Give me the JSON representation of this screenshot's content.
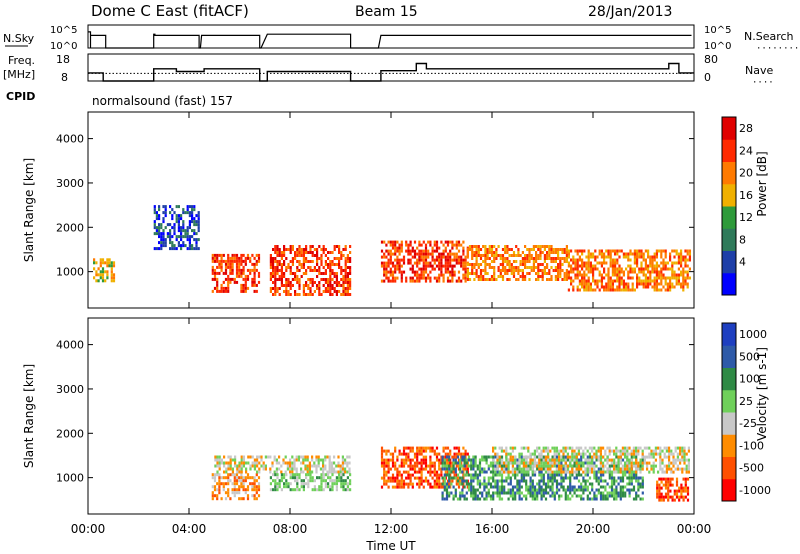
{
  "header": {
    "station": "Dome C East (fitACF)",
    "beam": "Beam 15",
    "date": "28/Jan/2013"
  },
  "strips": {
    "nsky": {
      "left_label": "N.Sky",
      "left_ticks": [
        "10^5",
        "10^0"
      ],
      "right_label": "N.Search",
      "right_ticks": [
        "10^5",
        "10^0"
      ],
      "line_style_hint": "·········"
    },
    "freq": {
      "left_label_1": "Freq.",
      "left_label_2": "[MHz]",
      "left_ticks": [
        "18",
        "8"
      ],
      "right_label": "Nave",
      "right_ticks": [
        "80",
        "0"
      ],
      "line_style_hint": "····"
    },
    "cpid": {
      "label": "CPID",
      "program": "normalsound (fast) 157"
    }
  },
  "chart_data": [
    {
      "type": "heatmap",
      "panel": "power",
      "ylabel": "Slant Range [km]",
      "yticks": [
        "1000",
        "2000",
        "3000",
        "4000"
      ],
      "ylim": [
        180,
        4600
      ],
      "xlim_hours": [
        0,
        24
      ],
      "colorbar": {
        "label": "Power [dB]",
        "ticks": [
          "28",
          "24",
          "20",
          "16",
          "12",
          "8",
          "4"
        ],
        "colors": [
          "#0000ff",
          "#1e3fa8",
          "#2f7a5a",
          "#2e9a3a",
          "#f0b000",
          "#ff7a00",
          "#ff2a00",
          "#e00000"
        ]
      },
      "echo_bands": [
        {
          "t0": 0.2,
          "t1": 1.0,
          "r0": 800,
          "r1": 1300,
          "level": 4
        },
        {
          "t0": 2.6,
          "t1": 4.4,
          "r0": 1500,
          "r1": 2500,
          "level": 1
        },
        {
          "t0": 4.9,
          "t1": 6.8,
          "r0": 550,
          "r1": 1400,
          "level": 6
        },
        {
          "t0": 7.2,
          "t1": 10.4,
          "r0": 500,
          "r1": 1600,
          "level": 6
        },
        {
          "t0": 11.6,
          "t1": 15.0,
          "r0": 800,
          "r1": 1700,
          "level": 6
        },
        {
          "t0": 15.0,
          "t1": 19.0,
          "r0": 800,
          "r1": 1600,
          "level": 5
        },
        {
          "t0": 19.0,
          "t1": 23.8,
          "r0": 600,
          "r1": 1500,
          "level": 5
        }
      ]
    },
    {
      "type": "heatmap",
      "panel": "velocity",
      "ylabel": "Slant Range [km]",
      "yticks": [
        "1000",
        "2000",
        "3000",
        "4000"
      ],
      "ylim": [
        180,
        4600
      ],
      "xlim_hours": [
        0,
        24
      ],
      "xlabel": "Time UT",
      "xticks": [
        "00:00",
        "04:00",
        "08:00",
        "12:00",
        "16:00",
        "20:00",
        "00:00"
      ],
      "colorbar": {
        "label": "Velocity [m s-1]",
        "ticks": [
          "1000",
          "500",
          "100",
          "25",
          "-25",
          "-100",
          "-500",
          "-1000"
        ],
        "colors": [
          "#ff0000",
          "#ff5000",
          "#ff8c00",
          "#c8c8c8",
          "#6fd05a",
          "#2f8a45",
          "#2e5aa8",
          "#1e3fc0"
        ]
      },
      "echo_bands": [
        {
          "t0": 4.9,
          "t1": 6.8,
          "r0": 550,
          "r1": 1100,
          "level": 2
        },
        {
          "t0": 5.0,
          "t1": 10.4,
          "r0": 1100,
          "r1": 1500,
          "level": 3
        },
        {
          "t0": 7.2,
          "t1": 10.4,
          "r0": 700,
          "r1": 1100,
          "level": 4
        },
        {
          "t0": 11.6,
          "t1": 15.0,
          "r0": 800,
          "r1": 1700,
          "level": 1
        },
        {
          "t0": 14.0,
          "t1": 22.0,
          "r0": 500,
          "r1": 1500,
          "level": 5
        },
        {
          "t0": 16.0,
          "t1": 23.8,
          "r0": 1100,
          "r1": 1700,
          "level": 3
        },
        {
          "t0": 22.5,
          "t1": 23.8,
          "r0": 500,
          "r1": 1000,
          "level": 1
        }
      ]
    }
  ]
}
